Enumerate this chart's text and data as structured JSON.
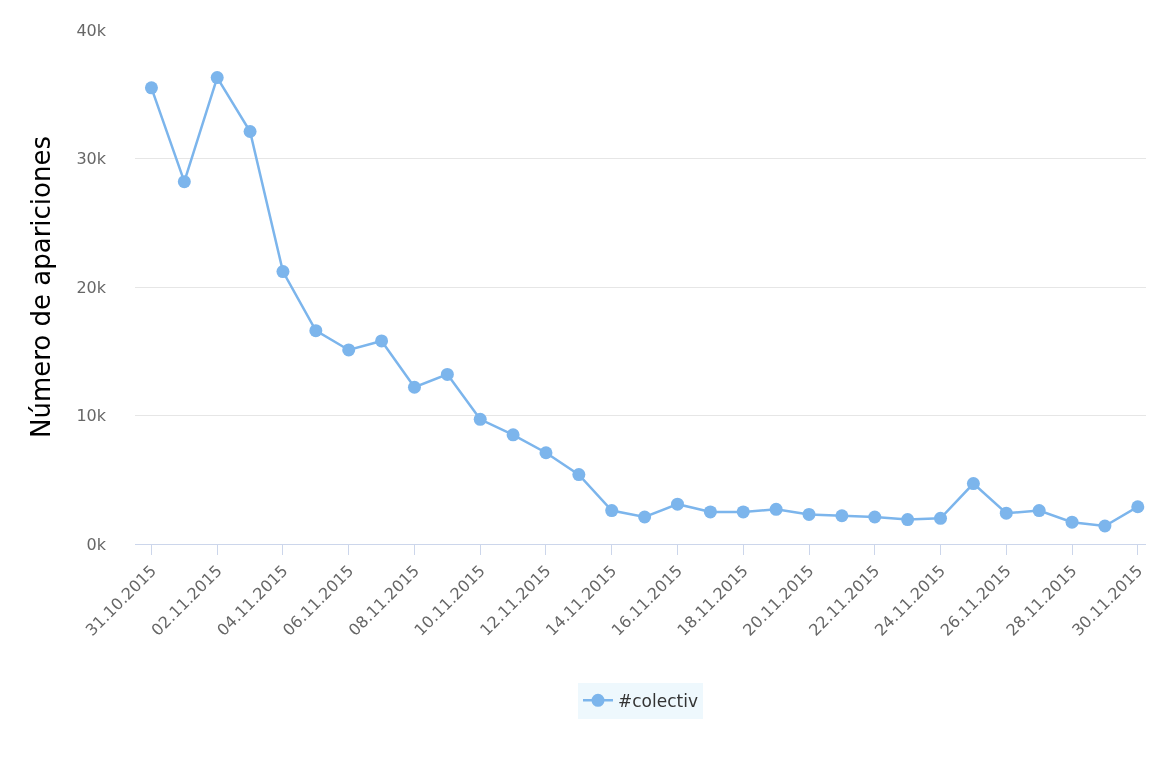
{
  "chart_data": {
    "type": "line",
    "ylabel": "Número de apariciones",
    "x": [
      "2015-10-31",
      "2015-11-01",
      "2015-11-02",
      "2015-11-03",
      "2015-11-04",
      "2015-11-05",
      "2015-11-06",
      "2015-11-07",
      "2015-11-08",
      "2015-11-09",
      "2015-11-10",
      "2015-11-11",
      "2015-11-12",
      "2015-11-13",
      "2015-11-14",
      "2015-11-15",
      "2015-11-16",
      "2015-11-17",
      "2015-11-18",
      "2015-11-19",
      "2015-11-20",
      "2015-11-21",
      "2015-11-22",
      "2015-11-23",
      "2015-11-24",
      "2015-11-25",
      "2015-11-26",
      "2015-11-27",
      "2015-11-28",
      "2015-11-29",
      "2015-11-30"
    ],
    "series": [
      {
        "name": "#colectiv",
        "color": "#7cb5ec",
        "values": [
          35500,
          28200,
          36300,
          32100,
          21200,
          16600,
          15100,
          15800,
          12200,
          13200,
          9700,
          8500,
          7100,
          5400,
          2600,
          2100,
          3100,
          2500,
          2500,
          2700,
          2300,
          2200,
          2100,
          1900,
          2000,
          4700,
          2400,
          2600,
          1700,
          1400,
          2900
        ]
      }
    ],
    "xlim": [
      "2015-10-30T12:00",
      "2015-11-30T06:00"
    ],
    "xticks": [
      {
        "value": "2015-10-31",
        "label": "31.10.2015"
      },
      {
        "value": "2015-11-02",
        "label": "02.11.2015"
      },
      {
        "value": "2015-11-04",
        "label": "04.11.2015"
      },
      {
        "value": "2015-11-06",
        "label": "06.11.2015"
      },
      {
        "value": "2015-11-08",
        "label": "08.11.2015"
      },
      {
        "value": "2015-11-10",
        "label": "10.11.2015"
      },
      {
        "value": "2015-11-12",
        "label": "12.11.2015"
      },
      {
        "value": "2015-11-14",
        "label": "14.11.2015"
      },
      {
        "value": "2015-11-16",
        "label": "16.11.2015"
      },
      {
        "value": "2015-11-18",
        "label": "18.11.2015"
      },
      {
        "value": "2015-11-20",
        "label": "20.11.2015"
      },
      {
        "value": "2015-11-22",
        "label": "22.11.2015"
      },
      {
        "value": "2015-11-24",
        "label": "24.11.2015"
      },
      {
        "value": "2015-11-26",
        "label": "26.11.2015"
      },
      {
        "value": "2015-11-28",
        "label": "28.11.2015"
      },
      {
        "value": "2015-11-30",
        "label": "30.11.2015"
      }
    ],
    "ylim": [
      0,
      40000
    ],
    "yticks": [
      {
        "value": 0,
        "label": "0k"
      },
      {
        "value": 10000,
        "label": "10k"
      },
      {
        "value": 20000,
        "label": "20k"
      },
      {
        "value": 30000,
        "label": "30k"
      },
      {
        "value": 40000,
        "label": "40k"
      }
    ],
    "grid": "y",
    "legend": "bottom",
    "marker": "circle",
    "line_style": "solid"
  }
}
